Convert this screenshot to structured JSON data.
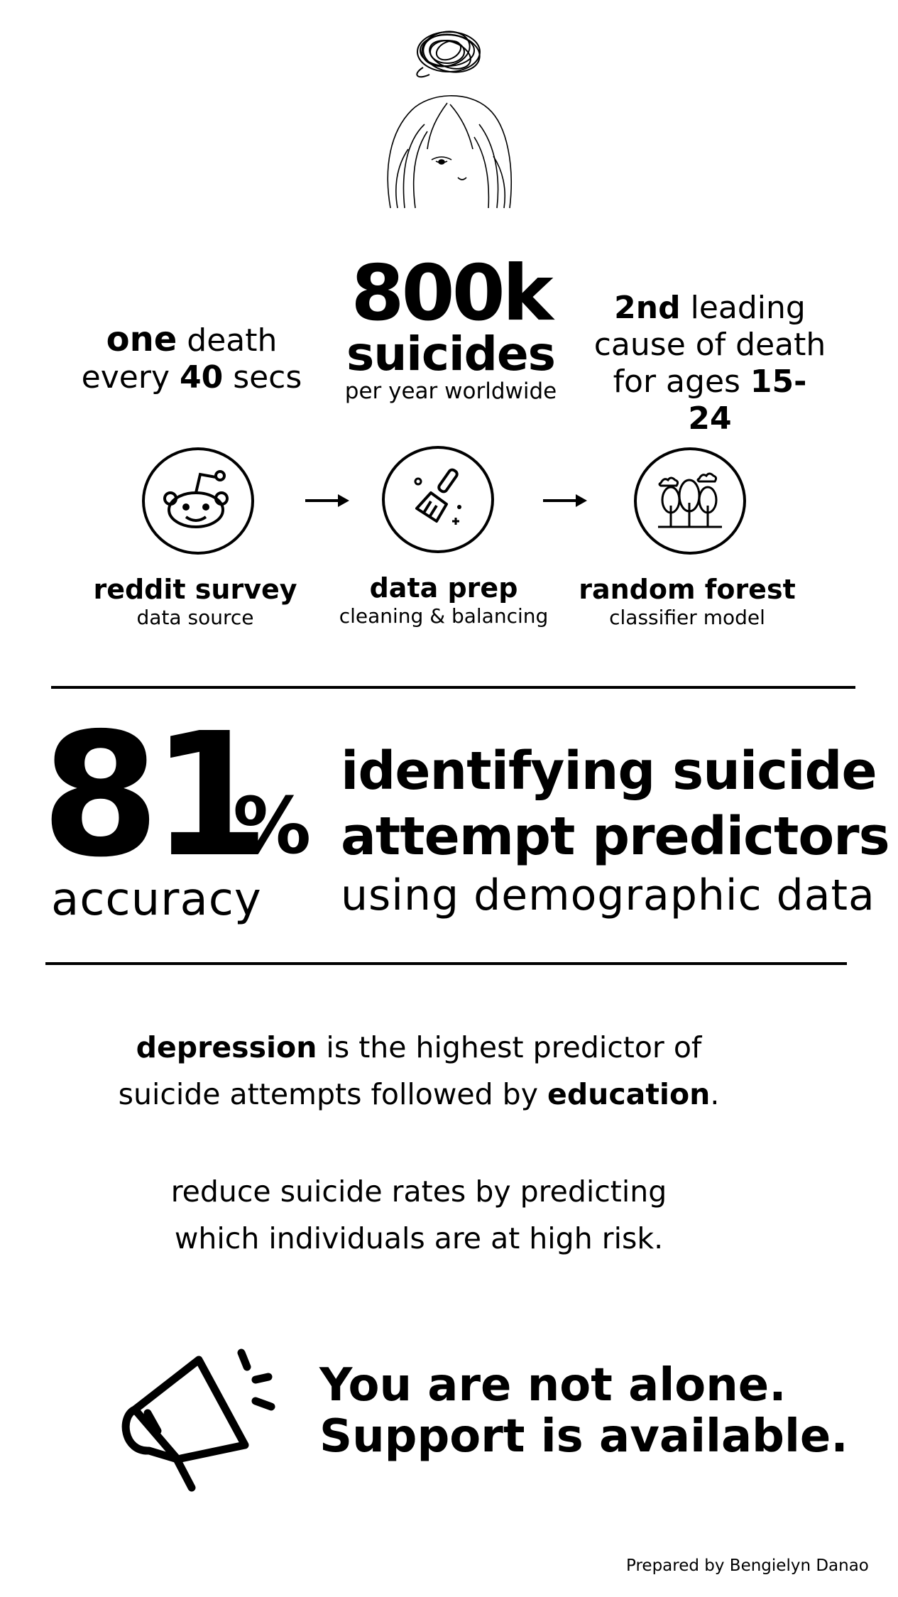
{
  "stats": {
    "left": {
      "bold_word": "one",
      "after_bold": " death",
      "line2_pre": "every ",
      "line2_bold": "40",
      "line2_post": " secs"
    },
    "center": {
      "number": "800k",
      "label": "suicides",
      "sub": "per year worldwide"
    },
    "right": {
      "bold_word": "2nd",
      "after_bold": " leading",
      "line2": "cause of death",
      "line3_pre": "for ages ",
      "line3_bold": "15-24"
    }
  },
  "pipeline": {
    "steps": [
      {
        "title": "reddit survey",
        "subtitle": "data source",
        "icon": "reddit-icon"
      },
      {
        "title": "data prep",
        "subtitle": "cleaning & balancing",
        "icon": "cleaning-brush-icon"
      },
      {
        "title": "random forest",
        "subtitle": "classifier model",
        "icon": "forest-trees-icon"
      }
    ],
    "arrow_icon": "arrow-right-icon"
  },
  "result": {
    "number": "81",
    "percent_sign": "%",
    "label": "accuracy",
    "headline_line1": "identifying suicide",
    "headline_line2": "attempt predictors",
    "headline_sub": "using demographic data"
  },
  "findings": {
    "p1_bold1": "depression",
    "p1_mid": " is the highest predictor of",
    "p1_line2_pre": "suicide attempts followed by ",
    "p1_bold2": "education",
    "p1_end": ".",
    "p2_line1": "reduce suicide rates by predicting",
    "p2_line2": "which individuals are at high risk."
  },
  "cta": {
    "line1": "You are not alone.",
    "line2": "Support is available.",
    "icon": "megaphone-icon"
  },
  "credit": "Prepared by Bengielyn Danao",
  "colors": {
    "ink": "#000000",
    "background": "#ffffff"
  }
}
